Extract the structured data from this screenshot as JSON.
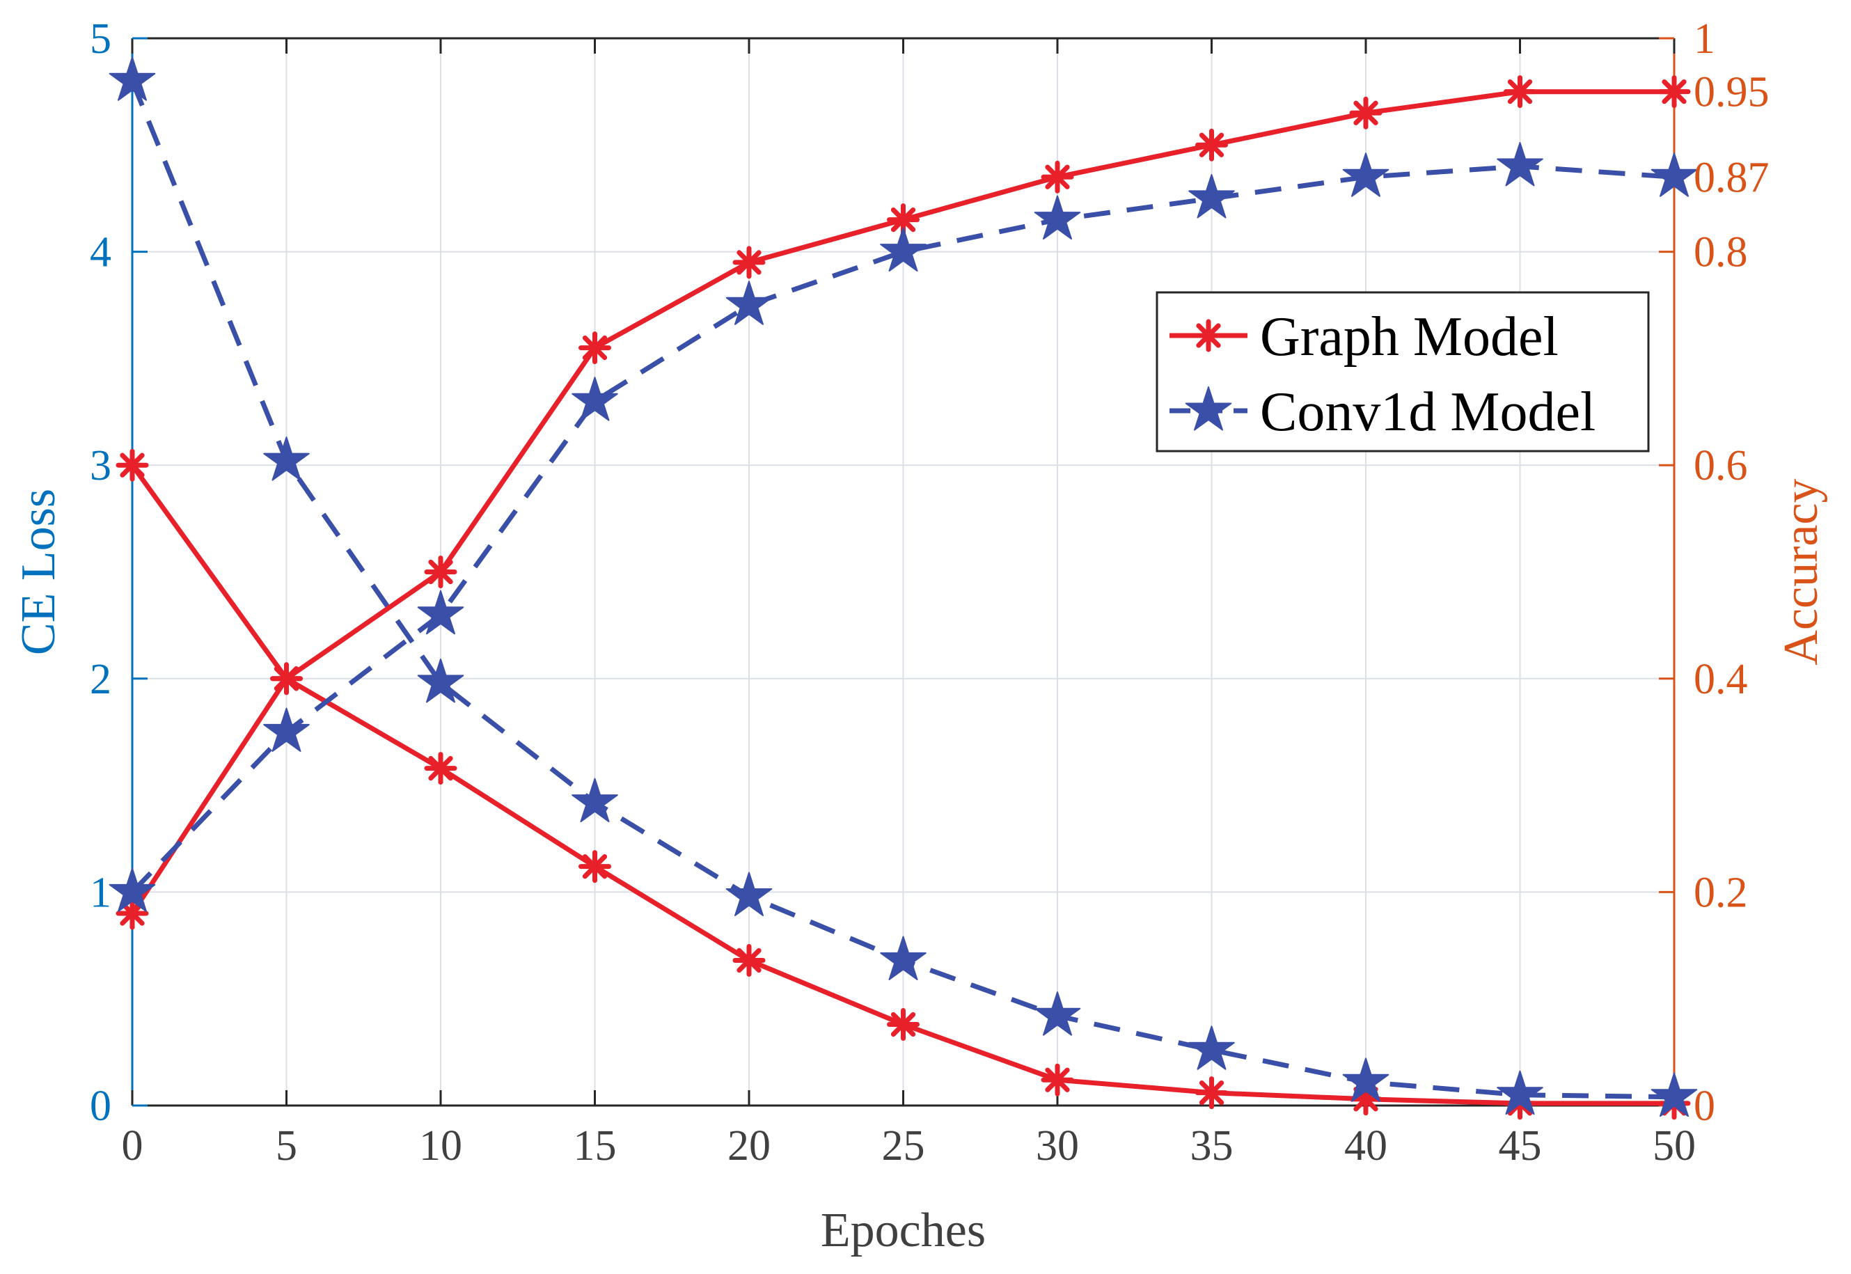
{
  "chart_data": {
    "type": "line",
    "xlabel": "Epoches",
    "ylabel_left": "CE Loss",
    "ylabel_right": "Accuracy",
    "xlim": [
      0,
      50
    ],
    "ylim_left": [
      0,
      5
    ],
    "ylim_right": [
      0,
      1
    ],
    "x_ticks": [
      0,
      5,
      10,
      15,
      20,
      25,
      30,
      35,
      40,
      45,
      50
    ],
    "y_left_ticks": [
      0,
      1,
      2,
      3,
      4,
      5
    ],
    "y_right_ticks": [
      {
        "value": 0,
        "label": "0"
      },
      {
        "value": 0.2,
        "label": "0.2"
      },
      {
        "value": 0.4,
        "label": "0.4"
      },
      {
        "value": 0.6,
        "label": "0.6"
      },
      {
        "value": 0.8,
        "label": "0.8"
      },
      {
        "value": 0.87,
        "label": "0.87"
      },
      {
        "value": 0.95,
        "label": "0.95"
      },
      {
        "value": 1,
        "label": "1"
      }
    ],
    "grid": true,
    "legend_position": "upper-right",
    "x": [
      0,
      5,
      10,
      15,
      20,
      25,
      30,
      35,
      40,
      45,
      50
    ],
    "series": [
      {
        "name": "Graph Model",
        "metric": "loss",
        "axis": "left",
        "color": "#E8202A",
        "style": "solid",
        "marker": "asterisk",
        "values": [
          3.0,
          2.0,
          1.58,
          1.12,
          0.68,
          0.38,
          0.12,
          0.06,
          0.03,
          0.01,
          0.01
        ]
      },
      {
        "name": "Conv1d Model",
        "metric": "loss",
        "axis": "left",
        "color": "#3A4FA8",
        "style": "dashed",
        "marker": "star",
        "values": [
          4.8,
          3.02,
          1.98,
          1.42,
          0.98,
          0.68,
          0.42,
          0.26,
          0.11,
          0.05,
          0.04
        ]
      },
      {
        "name": "Graph Model",
        "metric": "accuracy",
        "axis": "right",
        "color": "#E8202A",
        "style": "solid",
        "marker": "asterisk",
        "values": [
          0.18,
          0.4,
          0.5,
          0.71,
          0.79,
          0.83,
          0.87,
          0.9,
          0.93,
          0.95,
          0.95
        ]
      },
      {
        "name": "Conv1d Model",
        "metric": "accuracy",
        "axis": "right",
        "color": "#3A4FA8",
        "style": "dashed",
        "marker": "star",
        "values": [
          0.2,
          0.35,
          0.46,
          0.66,
          0.75,
          0.8,
          0.83,
          0.85,
          0.87,
          0.88,
          0.87
        ]
      }
    ],
    "legend": [
      {
        "label": "Graph Model",
        "color": "#E8202A",
        "style": "solid",
        "marker": "asterisk"
      },
      {
        "label": "Conv1d Model",
        "color": "#3A4FA8",
        "style": "dashed",
        "marker": "star"
      }
    ],
    "colors": {
      "left_axis": "#0072BD",
      "right_axis": "#D95319",
      "grid": "#DCDFE6",
      "frame": "#262626"
    }
  }
}
